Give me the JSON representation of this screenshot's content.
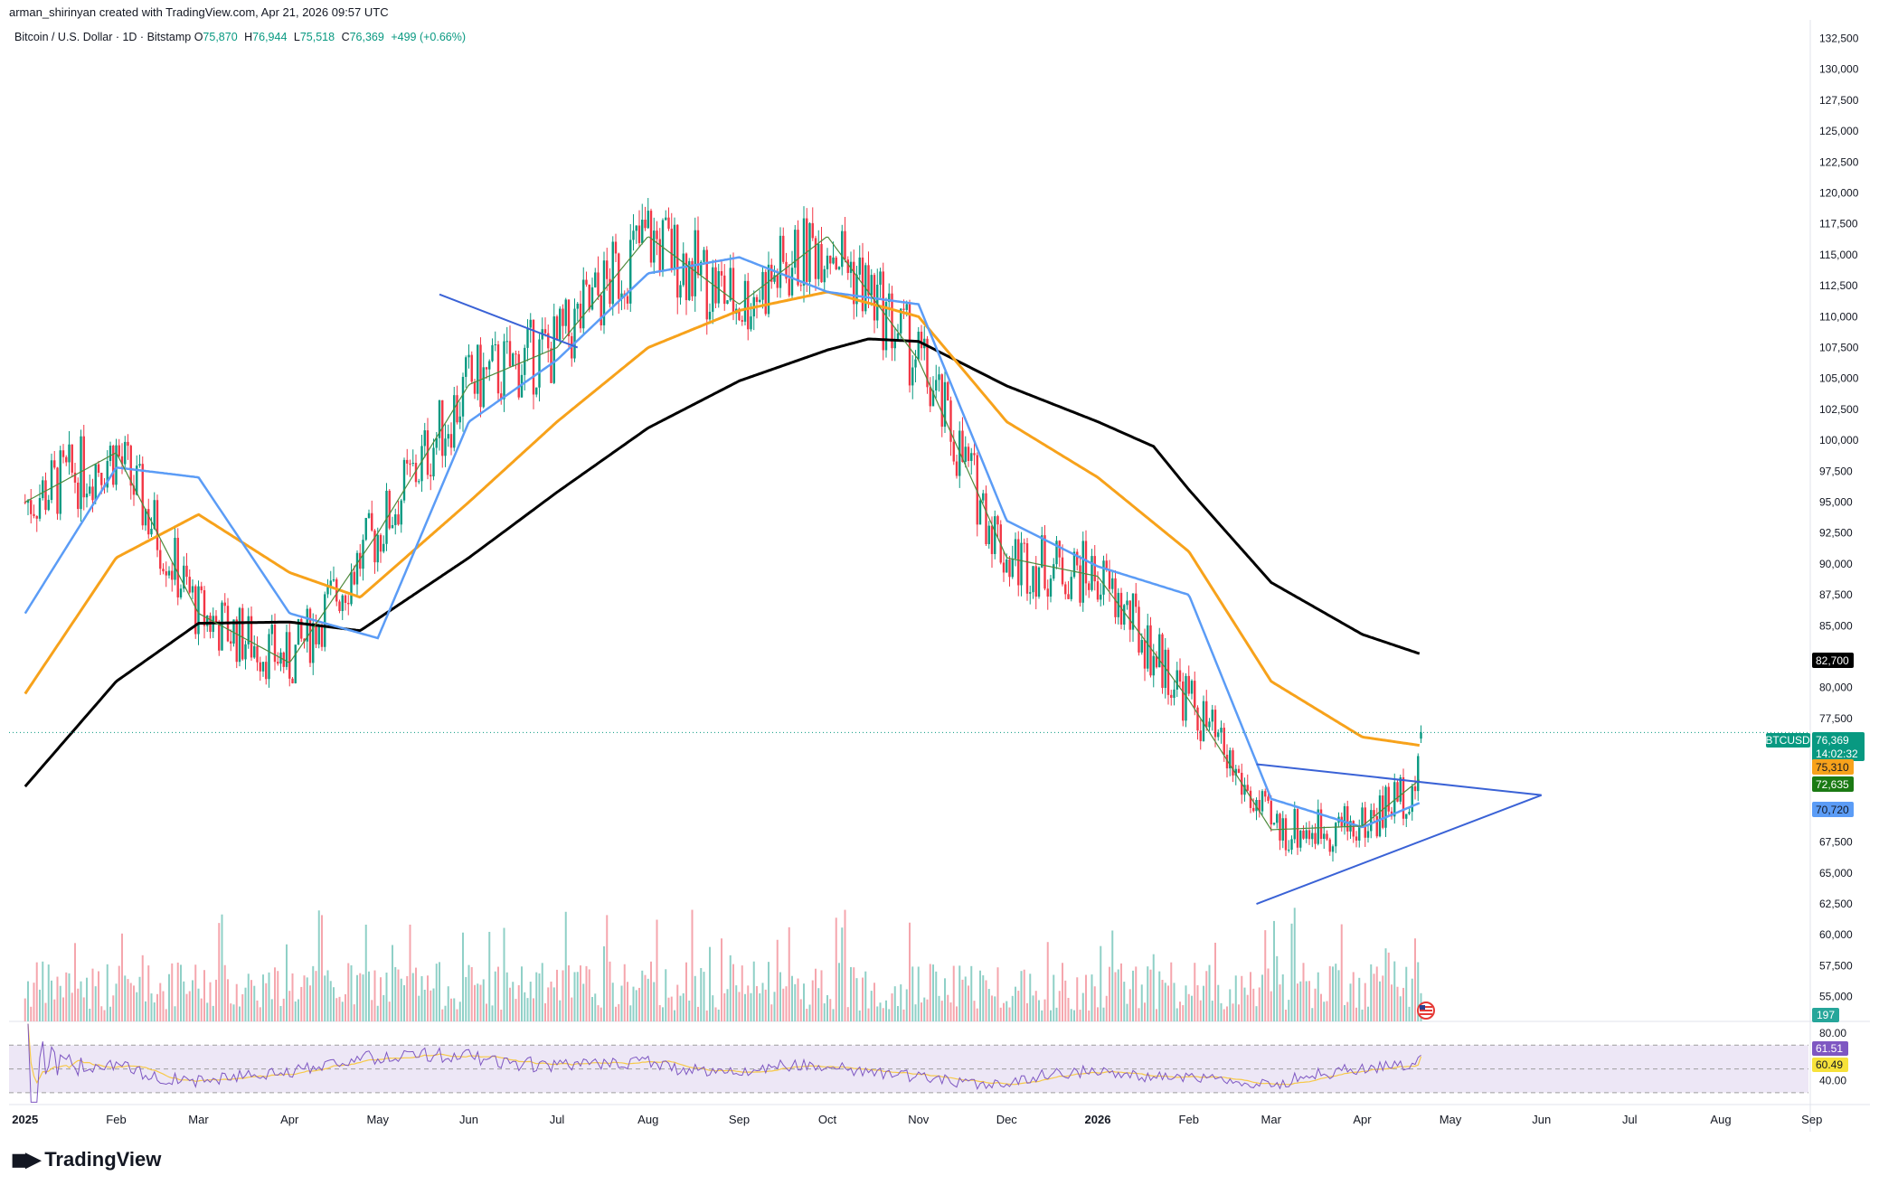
{
  "header": {
    "credit": "arman_shirinyan created with TradingView.com, Apr 21, 2026 09:57 UTC"
  },
  "legend": {
    "symbol": "Bitcoin / U.S. Dollar · 1D · Bitstamp",
    "o_label": "O",
    "o_value": "75,870",
    "h_label": "H",
    "h_value": "76,944",
    "l_label": "L",
    "l_value": "75,518",
    "c_label": "C",
    "c_value": "76,369",
    "change": "+499 (+0.66%)"
  },
  "brand": {
    "name": "TradingView",
    "logo_icon": "tradingview-logo-icon"
  },
  "colors": {
    "up": "#089981",
    "down": "#f23645",
    "sma200": "#000000",
    "sma100": "#f7a21b",
    "sma50": "#5b9cf6",
    "sma20": "#4f8a3d",
    "trendline": "#3a62d6",
    "rsi": "#7e57c2",
    "rsi_ma": "#f7c948",
    "rsi_band": "#ede7f6"
  },
  "price_axis": {
    "ticks": [
      "132,500",
      "130,000",
      "127,500",
      "125,000",
      "122,500",
      "120,000",
      "117,500",
      "115,000",
      "112,500",
      "110,000",
      "107,500",
      "105,000",
      "102,500",
      "100,000",
      "97,500",
      "95,000",
      "92,500",
      "90,000",
      "87,500",
      "85,000",
      "80,000",
      "77,500",
      "67,500",
      "65,000",
      "62,500",
      "60,000",
      "57,500",
      "55,000"
    ]
  },
  "badges": {
    "ticker": "BTCUSD",
    "last_price": "76,369",
    "countdown": "14:02:32",
    "sma200": "82,700",
    "sma100": "75,310",
    "sma20": "72,635",
    "sma50": "70,720",
    "volume": "197",
    "rsi": "61.51",
    "rsi_ma": "60.49"
  },
  "rsi_axis": {
    "ticks": [
      "80.00",
      "40.00"
    ]
  },
  "time_axis": {
    "labels": [
      "2025",
      "Feb",
      "Mar",
      "Apr",
      "May",
      "Jun",
      "Jul",
      "Aug",
      "Sep",
      "Oct",
      "Nov",
      "Dec",
      "2026",
      "Feb",
      "Mar",
      "Apr",
      "May",
      "Jun",
      "Jul",
      "Aug",
      "Sep"
    ]
  },
  "chart_data": [
    {
      "type": "candlestick",
      "ylim": [
        53000,
        134000
      ],
      "series": [
        {
          "name": "SMA 200",
          "points": [
            [
              "2025-01-01",
              72000
            ],
            [
              "2025-02-01",
              80500
            ],
            [
              "2025-03-01",
              85200
            ],
            [
              "2025-04-01",
              85300
            ],
            [
              "2025-04-25",
              84600
            ],
            [
              "2025-06-01",
              90500
            ],
            [
              "2025-07-01",
              95800
            ],
            [
              "2025-08-01",
              101000
            ],
            [
              "2025-09-01",
              104800
            ],
            [
              "2025-10-01",
              107300
            ],
            [
              "2025-10-15",
              108200
            ],
            [
              "2025-11-01",
              108000
            ],
            [
              "2025-12-01",
              104400
            ],
            [
              "2026-01-01",
              101500
            ],
            [
              "2026-01-20",
              99500
            ],
            [
              "2026-02-01",
              96000
            ],
            [
              "2026-03-01",
              88500
            ],
            [
              "2026-04-01",
              84300
            ],
            [
              "2026-04-21",
              82700
            ]
          ]
        },
        {
          "name": "SMA 100",
          "points": [
            [
              "2025-01-01",
              79500
            ],
            [
              "2025-02-01",
              90500
            ],
            [
              "2025-03-01",
              94000
            ],
            [
              "2025-04-01",
              89300
            ],
            [
              "2025-04-25",
              87300
            ],
            [
              "2025-06-01",
              95000
            ],
            [
              "2025-07-01",
              101500
            ],
            [
              "2025-08-01",
              107500
            ],
            [
              "2025-09-01",
              110500
            ],
            [
              "2025-10-01",
              112000
            ],
            [
              "2025-11-01",
              110000
            ],
            [
              "2025-12-01",
              101500
            ],
            [
              "2026-01-01",
              97000
            ],
            [
              "2026-02-01",
              91000
            ],
            [
              "2026-03-01",
              80500
            ],
            [
              "2026-04-01",
              76000
            ],
            [
              "2026-04-21",
              75310
            ]
          ]
        },
        {
          "name": "SMA 50",
          "points": [
            [
              "2025-01-01",
              86000
            ],
            [
              "2025-02-01",
              97800
            ],
            [
              "2025-03-01",
              97000
            ],
            [
              "2025-04-01",
              86000
            ],
            [
              "2025-05-01",
              84000
            ],
            [
              "2025-06-01",
              101500
            ],
            [
              "2025-07-01",
              106500
            ],
            [
              "2025-08-01",
              113500
            ],
            [
              "2025-09-01",
              114800
            ],
            [
              "2025-10-01",
              112000
            ],
            [
              "2025-11-01",
              111000
            ],
            [
              "2025-12-01",
              93500
            ],
            [
              "2026-01-01",
              89800
            ],
            [
              "2026-02-01",
              87500
            ],
            [
              "2026-03-01",
              71000
            ],
            [
              "2026-04-01",
              68700
            ],
            [
              "2026-04-21",
              70720
            ]
          ]
        },
        {
          "name": "SMA 20",
          "points": [
            [
              "2025-01-01",
              95000
            ],
            [
              "2025-02-01",
              99000
            ],
            [
              "2025-03-01",
              86000
            ],
            [
              "2025-04-01",
              82000
            ],
            [
              "2025-05-01",
              92500
            ],
            [
              "2025-06-01",
              104500
            ],
            [
              "2025-07-01",
              107500
            ],
            [
              "2025-08-01",
              116500
            ],
            [
              "2025-09-01",
              111000
            ],
            [
              "2025-10-01",
              116500
            ],
            [
              "2025-11-01",
              106500
            ],
            [
              "2025-12-01",
              90500
            ],
            [
              "2026-01-01",
              89000
            ],
            [
              "2026-02-01",
              79000
            ],
            [
              "2026-03-01",
              68500
            ],
            [
              "2026-04-01",
              68800
            ],
            [
              "2026-04-21",
              72635
            ]
          ]
        }
      ],
      "trendlines": [
        {
          "points": [
            [
              "2025-05-22",
              111800
            ],
            [
              "2025-07-08",
              107500
            ]
          ]
        },
        {
          "points": [
            [
              "2026-02-24",
              73800
            ],
            [
              "2026-06-01",
              71300
            ]
          ]
        },
        {
          "points": [
            [
              "2026-02-24",
              62500
            ],
            [
              "2026-06-01",
              71300
            ]
          ]
        }
      ],
      "last": {
        "date": "2026-04-21",
        "open": 75870,
        "high": 76944,
        "low": 75518,
        "close": 76369
      }
    },
    {
      "type": "bar",
      "name": "Volume",
      "last_value": 197
    },
    {
      "type": "line",
      "name": "RSI",
      "ylim": [
        20,
        90
      ],
      "band": [
        30,
        70
      ],
      "last_value": 61.51,
      "ma_last_value": 60.49
    }
  ]
}
